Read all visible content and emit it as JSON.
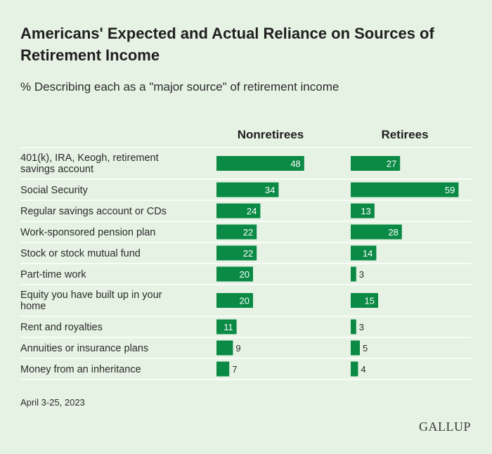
{
  "chart_data": {
    "type": "bar",
    "title": "Americans' Expected and Actual Reliance on Sources of Retirement Income",
    "subtitle": "% Describing each as a \"major source\" of retirement income",
    "categories": [
      [
        "401(k), IRA, Keogh, retirement",
        "savings account"
      ],
      [
        "Social Security"
      ],
      [
        "Regular savings account or CDs"
      ],
      [
        "Work-sponsored pension plan"
      ],
      [
        "Stock or stock mutual fund"
      ],
      [
        "Part-time work"
      ],
      [
        "Equity you have built up in your",
        "home"
      ],
      [
        "Rent and royalties"
      ],
      [
        "Annuities or insurance plans"
      ],
      [
        "Money from an inheritance"
      ]
    ],
    "series": [
      {
        "name": "Nonretirees",
        "values": [
          48,
          34,
          24,
          22,
          22,
          20,
          20,
          11,
          9,
          7
        ]
      },
      {
        "name": "Retirees",
        "values": [
          27,
          59,
          13,
          28,
          14,
          3,
          15,
          3,
          5,
          4
        ]
      }
    ],
    "bar_color": "#0a8a45",
    "ylim": [
      0,
      100
    ],
    "legend": "column headers"
  },
  "footnote": "April 3-25, 2023",
  "source_logo": "GALLUP"
}
